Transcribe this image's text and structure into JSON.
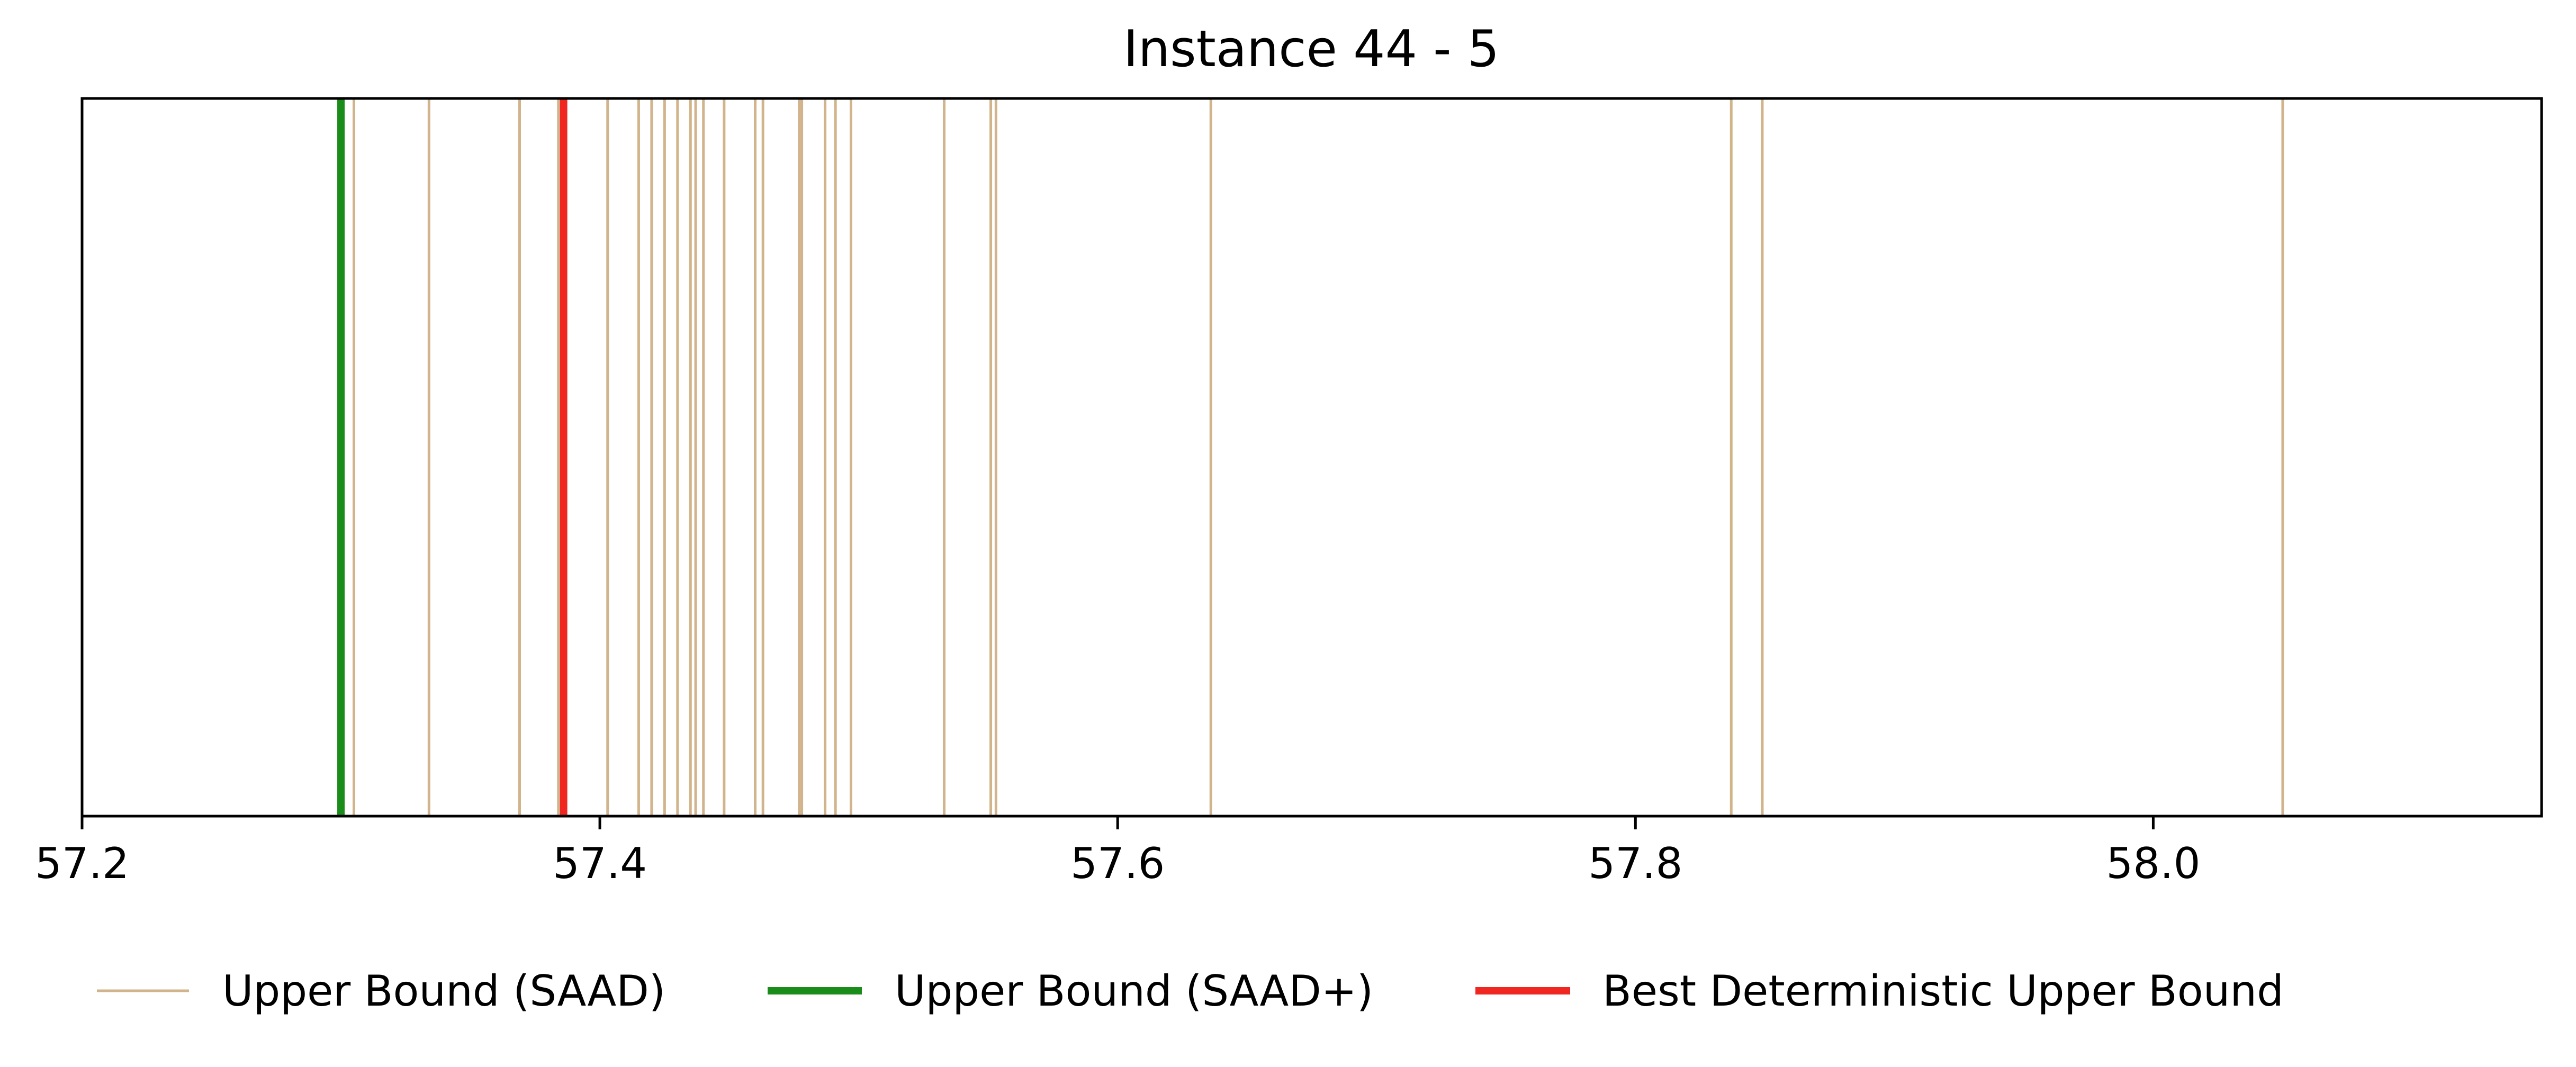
{
  "chart_data": {
    "type": "vertical-lines",
    "title": "Instance 44 - 5",
    "xlabel": "",
    "ylabel": "",
    "xlim": [
      57.2,
      58.15
    ],
    "xticks": [
      57.2,
      57.4,
      57.6,
      57.8,
      58.0
    ],
    "xtick_labels": [
      "57.2",
      "57.4",
      "57.6",
      "57.8",
      "58.0"
    ],
    "yticks_visible": false,
    "grid": false,
    "legend_position": "bottom",
    "series": [
      {
        "name": "Upper Bound (SAAD)",
        "color": "#d2b48c",
        "x": [
          57.305,
          57.334,
          57.369,
          57.384,
          57.403,
          57.415,
          57.42,
          57.425,
          57.43,
          57.435,
          57.437,
          57.44,
          57.448,
          57.46,
          57.463,
          57.477,
          57.478,
          57.487,
          57.491,
          57.497,
          57.533,
          57.551,
          57.553,
          57.636,
          57.837,
          57.849,
          58.05
        ]
      },
      {
        "name": "Upper Bound (SAAD+)",
        "color": "#1a8c1a",
        "x": [
          57.3
        ]
      },
      {
        "name": "Best Deterministic Upper Bound",
        "color": "#f02620",
        "x": [
          57.386
        ]
      }
    ]
  }
}
